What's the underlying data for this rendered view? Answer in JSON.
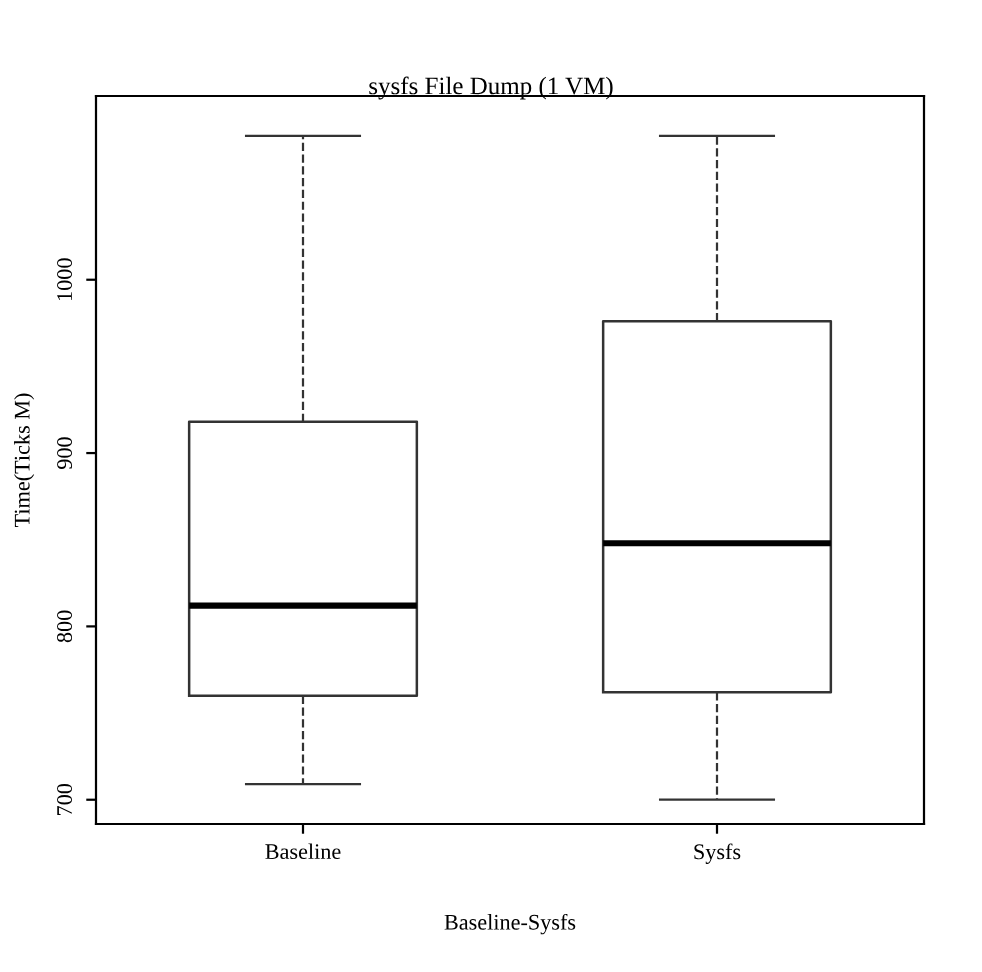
{
  "chart_data": {
    "type": "box",
    "title": "sysfs File Dump (1 VM)",
    "xlabel": "Baseline-Sysfs",
    "ylabel": "Time(Ticks M)",
    "categories": [
      "Baseline",
      "Sysfs"
    ],
    "boxes": [
      {
        "low": 709,
        "q1": 760,
        "median": 812,
        "q3": 918,
        "high": 1083
      },
      {
        "low": 700,
        "q1": 762,
        "median": 848,
        "q3": 976,
        "high": 1083
      }
    ],
    "ylim": [
      686,
      1106
    ],
    "yticks": [
      700,
      800,
      900,
      1000
    ],
    "grid": false,
    "legend": false
  }
}
